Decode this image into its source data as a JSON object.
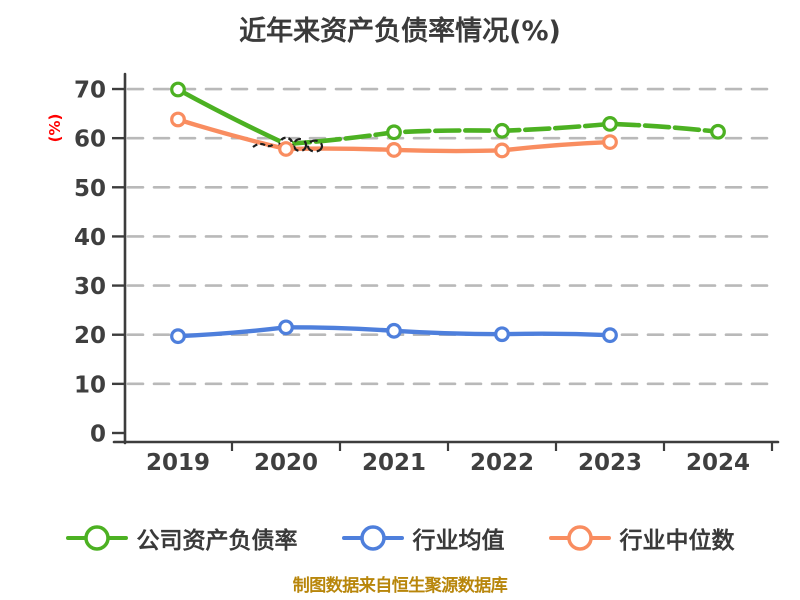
{
  "title": "近年来资产负债率情况(%)",
  "footer_note": "制图数据来自恒生聚源数据库",
  "colors": {
    "title_text": "#3b3b3b",
    "axis": "#3d3d3d",
    "tick_text": "#3f3f3f",
    "gridline": "#b9b9b9",
    "axis_label_accent": "#ff0000",
    "legend_text": "#3a3a3a",
    "footer_text": "#b8860b",
    "series_company": "#4cb122",
    "series_industry_mean": "#4e7fdc",
    "series_industry_median": "#f98d60",
    "sketch_artifact": "#1d1d1d"
  },
  "chart_data": {
    "type": "line",
    "title": "近年来资产负债率情况(%)",
    "xlabel": "",
    "ylabel": "(%)",
    "x_categories": [
      "2019",
      "2020",
      "2021",
      "2022",
      "2023",
      "2024"
    ],
    "y_ticks": [
      0,
      10,
      20,
      30,
      40,
      50,
      60,
      70
    ],
    "ylim": [
      0,
      70
    ],
    "grid": "horizontal-dashed",
    "legend_position": "bottom",
    "style": "hand-drawn-sketch",
    "series": [
      {
        "name": "公司资产负债率",
        "color": "#4cb122",
        "marker": "circle-white-fill",
        "x": [
          "2019",
          "2020",
          "2021",
          "2022",
          "2023",
          "2024"
        ],
        "values": [
          69.9,
          58.8,
          61.2,
          61.5,
          62.9,
          61.3
        ]
      },
      {
        "name": "行业均值",
        "color": "#4e7fdc",
        "marker": "circle-white-fill",
        "x": [
          "2019",
          "2020",
          "2021",
          "2022",
          "2023"
        ],
        "values": [
          19.7,
          21.5,
          20.8,
          20.1,
          19.9
        ]
      },
      {
        "name": "行业中位数",
        "color": "#f98d60",
        "marker": "circle-white-fill",
        "x": [
          "2019",
          "2020",
          "2021",
          "2022",
          "2023"
        ],
        "values": [
          63.8,
          57.8,
          57.6,
          57.5,
          59.2
        ]
      }
    ]
  }
}
